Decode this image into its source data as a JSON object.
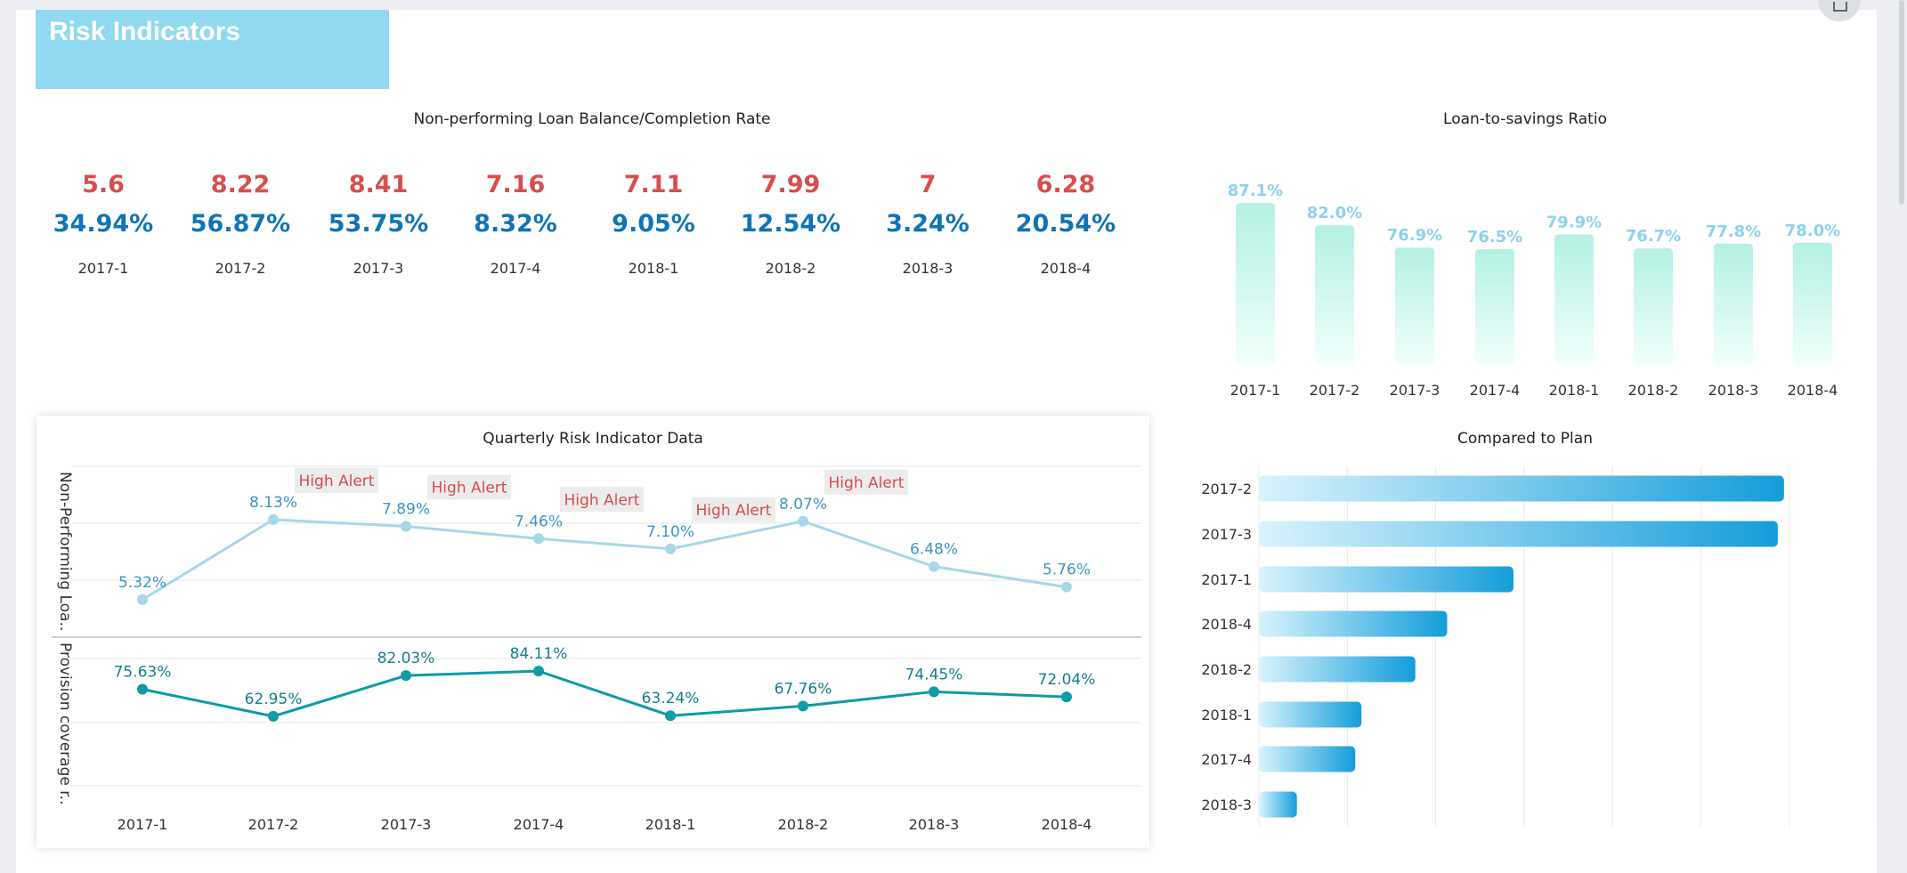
{
  "header": {
    "title": "Risk Indicators",
    "corner_button_icon": "export-icon"
  },
  "kpi": {
    "title": "Non-performing Loan Balance/Completion Rate",
    "items": [
      {
        "period": "2017-1",
        "balance": "5.6",
        "rate": "34.94%"
      },
      {
        "period": "2017-2",
        "balance": "8.22",
        "rate": "56.87%"
      },
      {
        "period": "2017-3",
        "balance": "8.41",
        "rate": "53.75%"
      },
      {
        "period": "2017-4",
        "balance": "7.16",
        "rate": "8.32%"
      },
      {
        "period": "2018-1",
        "balance": "7.11",
        "rate": "9.05%"
      },
      {
        "period": "2018-2",
        "balance": "7.99",
        "rate": "12.54%"
      },
      {
        "period": "2018-3",
        "balance": "7",
        "rate": "3.24%"
      },
      {
        "period": "2018-4",
        "balance": "6.28",
        "rate": "20.54%"
      }
    ],
    "colors": {
      "balance": "#d64e4e",
      "rate": "#0f74b6"
    }
  },
  "chart_data": [
    {
      "type": "bar",
      "title": "Loan-to-savings Ratio",
      "categories": [
        "2017-1",
        "2017-2",
        "2017-3",
        "2017-4",
        "2018-1",
        "2018-2",
        "2018-3",
        "2018-4"
      ],
      "values": [
        87.1,
        82.0,
        76.9,
        76.5,
        79.9,
        76.7,
        77.8,
        78.0
      ],
      "labels": [
        "87.1%",
        "82.0%",
        "76.9%",
        "76.5%",
        "79.9%",
        "76.7%",
        "77.8%",
        "78.0%"
      ],
      "ylim": [
        50,
        90
      ],
      "grid": false,
      "colors": {
        "bar_top": "#b3f1e3",
        "bar_bottom": "#f2fffc",
        "label": "#8dd2ea"
      }
    },
    {
      "type": "line",
      "title": "Quarterly Risk Indicator Data",
      "categories": [
        "2017-1",
        "2017-2",
        "2017-3",
        "2017-4",
        "2018-1",
        "2018-2",
        "2018-3",
        "2018-4"
      ],
      "grid": true,
      "series": [
        {
          "name": "Non-Performing Loa..",
          "values": [
            5.32,
            8.13,
            7.89,
            7.46,
            7.1,
            8.07,
            6.48,
            5.76
          ],
          "labels": [
            "5.32%",
            "8.13%",
            "7.89%",
            "7.46%",
            "7.10%",
            "8.07%",
            "6.48%",
            "5.76%"
          ],
          "ylim": [
            4,
            10
          ],
          "color": "#a6d7ea",
          "label_color": "#3e95c2",
          "alerts": [
            false,
            true,
            true,
            true,
            true,
            true,
            false,
            false
          ]
        },
        {
          "name": "Provision coverage r..",
          "values": [
            75.63,
            62.95,
            82.03,
            84.11,
            63.24,
            67.76,
            74.45,
            72.04
          ],
          "labels": [
            "75.63%",
            "62.95%",
            "82.03%",
            "84.11%",
            "63.24%",
            "67.76%",
            "74.45%",
            "72.04%"
          ],
          "ylim": [
            30,
            90
          ],
          "color": "#0e9aa7",
          "label_color": "#13808c"
        }
      ],
      "alert_text": "High Alert",
      "alert_color": "#d64e4e"
    },
    {
      "type": "bar",
      "orientation": "horizontal",
      "title": "Compared to Plan",
      "categories": [
        "2017-2",
        "2017-3",
        "2017-1",
        "2018-4",
        "2018-2",
        "2018-1",
        "2017-4",
        "2018-3"
      ],
      "values": [
        5.94,
        5.87,
        2.88,
        2.13,
        1.77,
        1.16,
        1.09,
        0.43
      ],
      "xlim": [
        0,
        7
      ],
      "grid": true,
      "colors": {
        "bar_start": "#d9f3fd",
        "bar_end": "#149dda"
      }
    }
  ]
}
